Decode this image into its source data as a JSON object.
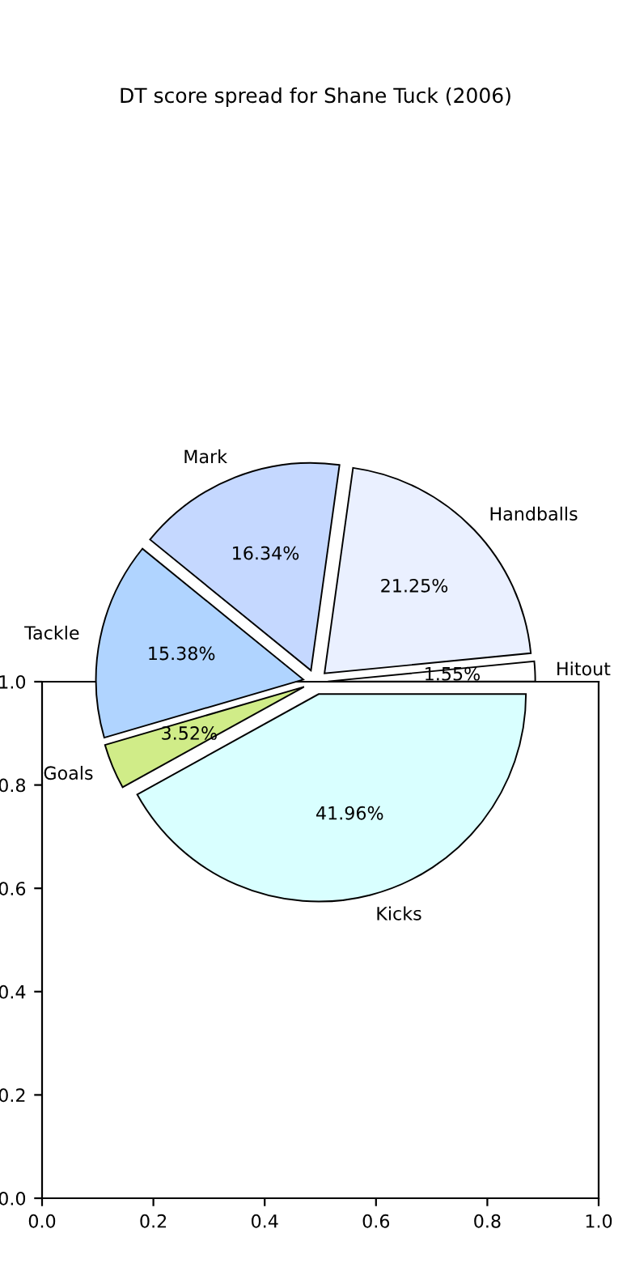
{
  "chart_data": [
    {
      "type": "pie",
      "title": "DT score spread for Shane Tuck (2006)",
      "categories": [
        "Hitout",
        "Handballs",
        "Mark",
        "Tackle",
        "Goals",
        "Kicks"
      ],
      "values": [
        1.55,
        21.25,
        16.34,
        15.38,
        3.52,
        41.96
      ],
      "value_labels": [
        "1.55%",
        "21.25%",
        "16.34%",
        "15.38%",
        "3.52%",
        "41.96%"
      ],
      "colors": [
        "#ffffff",
        "#eaf0ff",
        "#c5d8ff",
        "#b0d4ff",
        "#d0ec88",
        "#d9ffff"
      ]
    },
    {
      "type": "scatter",
      "xlim": [
        0,
        1
      ],
      "ylim": [
        0,
        1
      ],
      "xticks": [
        {
          "value": 0,
          "label": "0.0"
        },
        {
          "value": 0.2,
          "label": "0.2"
        },
        {
          "value": 0.4,
          "label": "0.4"
        },
        {
          "value": 0.6,
          "label": "0.6"
        },
        {
          "value": 0.8,
          "label": "0.8"
        },
        {
          "value": 1,
          "label": "1.0"
        }
      ],
      "yticks": [
        {
          "value": 0,
          "label": "0.0"
        },
        {
          "value": 0.2,
          "label": "0.2"
        },
        {
          "value": 0.4,
          "label": "0.4"
        },
        {
          "value": 0.6,
          "label": "0.6"
        },
        {
          "value": 0.8,
          "label": "0.8"
        },
        {
          "value": 1,
          "label": "1.0"
        }
      ]
    }
  ]
}
